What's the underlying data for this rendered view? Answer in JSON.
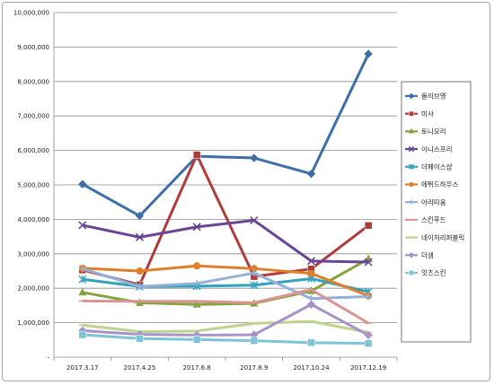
{
  "chart_data": {
    "type": "line",
    "title": "",
    "xlabel": "",
    "ylabel": "",
    "categories": [
      "2017.3.17",
      "2017.4.25",
      "2017.6.8",
      "2017.8.9",
      "2017.10.24",
      "2017.12.19"
    ],
    "ylim": [
      0,
      10000000
    ],
    "yticks": [
      {
        "value": 0,
        "label": "-"
      },
      {
        "value": 1000000,
        "label": "1,000,000"
      },
      {
        "value": 2000000,
        "label": "2,000,000"
      },
      {
        "value": 3000000,
        "label": "3,000,000"
      },
      {
        "value": 4000000,
        "label": "4,000,000"
      },
      {
        "value": 5000000,
        "label": "5,000,000"
      },
      {
        "value": 6000000,
        "label": "6,000,000"
      },
      {
        "value": 7000000,
        "label": "7,000,000"
      },
      {
        "value": 8000000,
        "label": "8,000,000"
      },
      {
        "value": 9000000,
        "label": "9,000,000"
      },
      {
        "value": 10000000,
        "label": "10,000,000"
      }
    ],
    "grid": true,
    "legend_position": "right",
    "series": [
      {
        "name": "올리브영",
        "color": "#3f6fa8",
        "marker": "diamond",
        "values": [
          5020000,
          4100000,
          5830000,
          5780000,
          5320000,
          8800000
        ]
      },
      {
        "name": "미샤",
        "color": "#b03b3b",
        "marker": "square",
        "values": [
          2530000,
          2100000,
          5870000,
          2340000,
          2560000,
          3820000
        ]
      },
      {
        "name": "토니모리",
        "color": "#86a23e",
        "marker": "triangle",
        "values": [
          1880000,
          1580000,
          1530000,
          1560000,
          1920000,
          2850000
        ]
      },
      {
        "name": "이니스프리",
        "color": "#6a4595",
        "marker": "x",
        "values": [
          3830000,
          3480000,
          3780000,
          3970000,
          2790000,
          2760000
        ]
      },
      {
        "name": "더페이스샵",
        "color": "#33a3bd",
        "marker": "star",
        "values": [
          2260000,
          2050000,
          2060000,
          2090000,
          2280000,
          1900000
        ]
      },
      {
        "name": "에뛰드하우스",
        "color": "#e07f2a",
        "marker": "circle",
        "values": [
          2580000,
          2500000,
          2650000,
          2570000,
          2430000,
          1780000
        ]
      },
      {
        "name": "아리따움",
        "color": "#93b1d8",
        "marker": "plus",
        "values": [
          2570000,
          2050000,
          2140000,
          2440000,
          1700000,
          1760000
        ]
      },
      {
        "name": "스킨푸드",
        "color": "#d89594",
        "marker": "dash",
        "values": [
          1630000,
          1620000,
          1620000,
          1580000,
          1960000,
          990000
        ]
      },
      {
        "name": "네이처리퍼블릭",
        "color": "#bfd38f",
        "marker": "dash",
        "values": [
          930000,
          740000,
          760000,
          980000,
          1040000,
          720000
        ]
      },
      {
        "name": "더샘",
        "color": "#a893c6",
        "marker": "diamond",
        "values": [
          770000,
          660000,
          640000,
          650000,
          1530000,
          640000
        ]
      },
      {
        "name": "잇츠스킨",
        "color": "#7fc3d6",
        "marker": "square",
        "values": [
          650000,
          540000,
          510000,
          480000,
          420000,
          400000
        ]
      }
    ]
  }
}
